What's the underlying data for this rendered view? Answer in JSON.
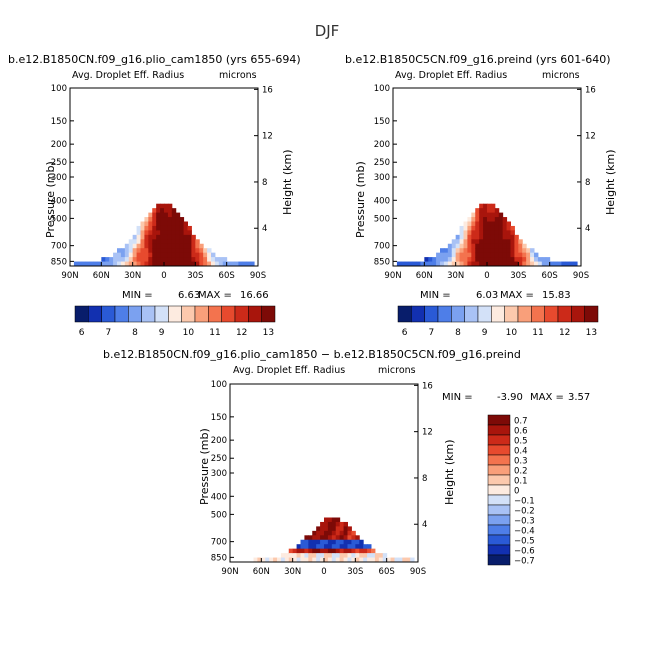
{
  "page_title": "DJF",
  "chart_data": [
    {
      "type": "heatmap",
      "title": "b.e12.B1850CN.f09_g16.plio_cam1850 (yrs 655-694)",
      "subtitle": "Avg. Droplet Eff. Radius",
      "units": "microns",
      "ylabel": "Pressure (mb)",
      "ylabel_right": "Height (km)",
      "x_ticks": [
        "90N",
        "60N",
        "30N",
        "0",
        "30S",
        "60S",
        "90S"
      ],
      "y_ticks": [
        "100",
        "150",
        "200",
        "250",
        "300",
        "400",
        "500",
        "700",
        "850"
      ],
      "y_ticks_right": [
        "16",
        "12",
        "8",
        "4"
      ],
      "min_label": "MIN =",
      "min_value": "6.63",
      "max_label": "MAX =",
      "max_value": "16.66",
      "colorbar_labels": [
        "6",
        "7",
        "8",
        "9",
        "10",
        "11",
        "12",
        "13"
      ],
      "data_range": [
        6.63,
        16.66
      ]
    },
    {
      "type": "heatmap",
      "title": "b.e12.B1850C5CN.f09_g16.preind (yrs 601-640)",
      "subtitle": "Avg. Droplet Eff. Radius",
      "units": "microns",
      "ylabel": "Pressure (mb)",
      "ylabel_right": "Height (km)",
      "x_ticks": [
        "90N",
        "60N",
        "30N",
        "0",
        "30S",
        "60S",
        "90S"
      ],
      "y_ticks": [
        "100",
        "150",
        "200",
        "250",
        "300",
        "400",
        "500",
        "700",
        "850"
      ],
      "y_ticks_right": [
        "16",
        "12",
        "8",
        "4"
      ],
      "min_label": "MIN =",
      "min_value": "6.03",
      "max_label": "MAX =",
      "max_value": "15.83",
      "colorbar_labels": [
        "6",
        "7",
        "8",
        "9",
        "10",
        "11",
        "12",
        "13"
      ],
      "data_range": [
        6.03,
        15.83
      ]
    },
    {
      "type": "heatmap",
      "title": "b.e12.B1850CN.f09_g16.plio_cam1850 − b.e12.B1850C5CN.f09_g16.preind",
      "subtitle": "Avg. Droplet Eff. Radius",
      "units": "microns",
      "ylabel": "Pressure (mb)",
      "ylabel_right": "Height (km)",
      "x_ticks": [
        "90N",
        "60N",
        "30N",
        "0",
        "30S",
        "60S",
        "90S"
      ],
      "y_ticks": [
        "100",
        "150",
        "200",
        "250",
        "300",
        "400",
        "500",
        "700",
        "850"
      ],
      "y_ticks_right": [
        "16",
        "12",
        "8",
        "4"
      ],
      "min_label": "MIN =",
      "min_value": "-3.90",
      "max_label": "MAX =",
      "max_value": "3.57",
      "colorbar_labels": [
        "0.7",
        "0.6",
        "0.5",
        "0.4",
        "0.3",
        "0.2",
        "0.1",
        "0",
        "−0.1",
        "−0.2",
        "−0.3",
        "−0.4",
        "−0.5",
        "−0.6",
        "−0.7"
      ],
      "data_range": [
        -3.9,
        3.57
      ]
    }
  ],
  "colors": {
    "seq_palette": [
      "#081d6b",
      "#1230b0",
      "#2a5ad6",
      "#4e7ee8",
      "#7ba1f0",
      "#a9c2f5",
      "#d3e1f8",
      "#fdebe0",
      "#fcc9ad",
      "#f99f7a",
      "#f3734e",
      "#e74a2e",
      "#cc2a19",
      "#a8150c",
      "#7d0a07"
    ],
    "div_palette": [
      "#7d0a07",
      "#a8150c",
      "#cc2a19",
      "#e74a2e",
      "#f3734e",
      "#f99f7a",
      "#fcc9ad",
      "#fdebe0",
      "#d3e1f8",
      "#a9c2f5",
      "#7ba1f0",
      "#4e7ee8",
      "#2a5ad6",
      "#1230b0",
      "#081d6b"
    ]
  }
}
